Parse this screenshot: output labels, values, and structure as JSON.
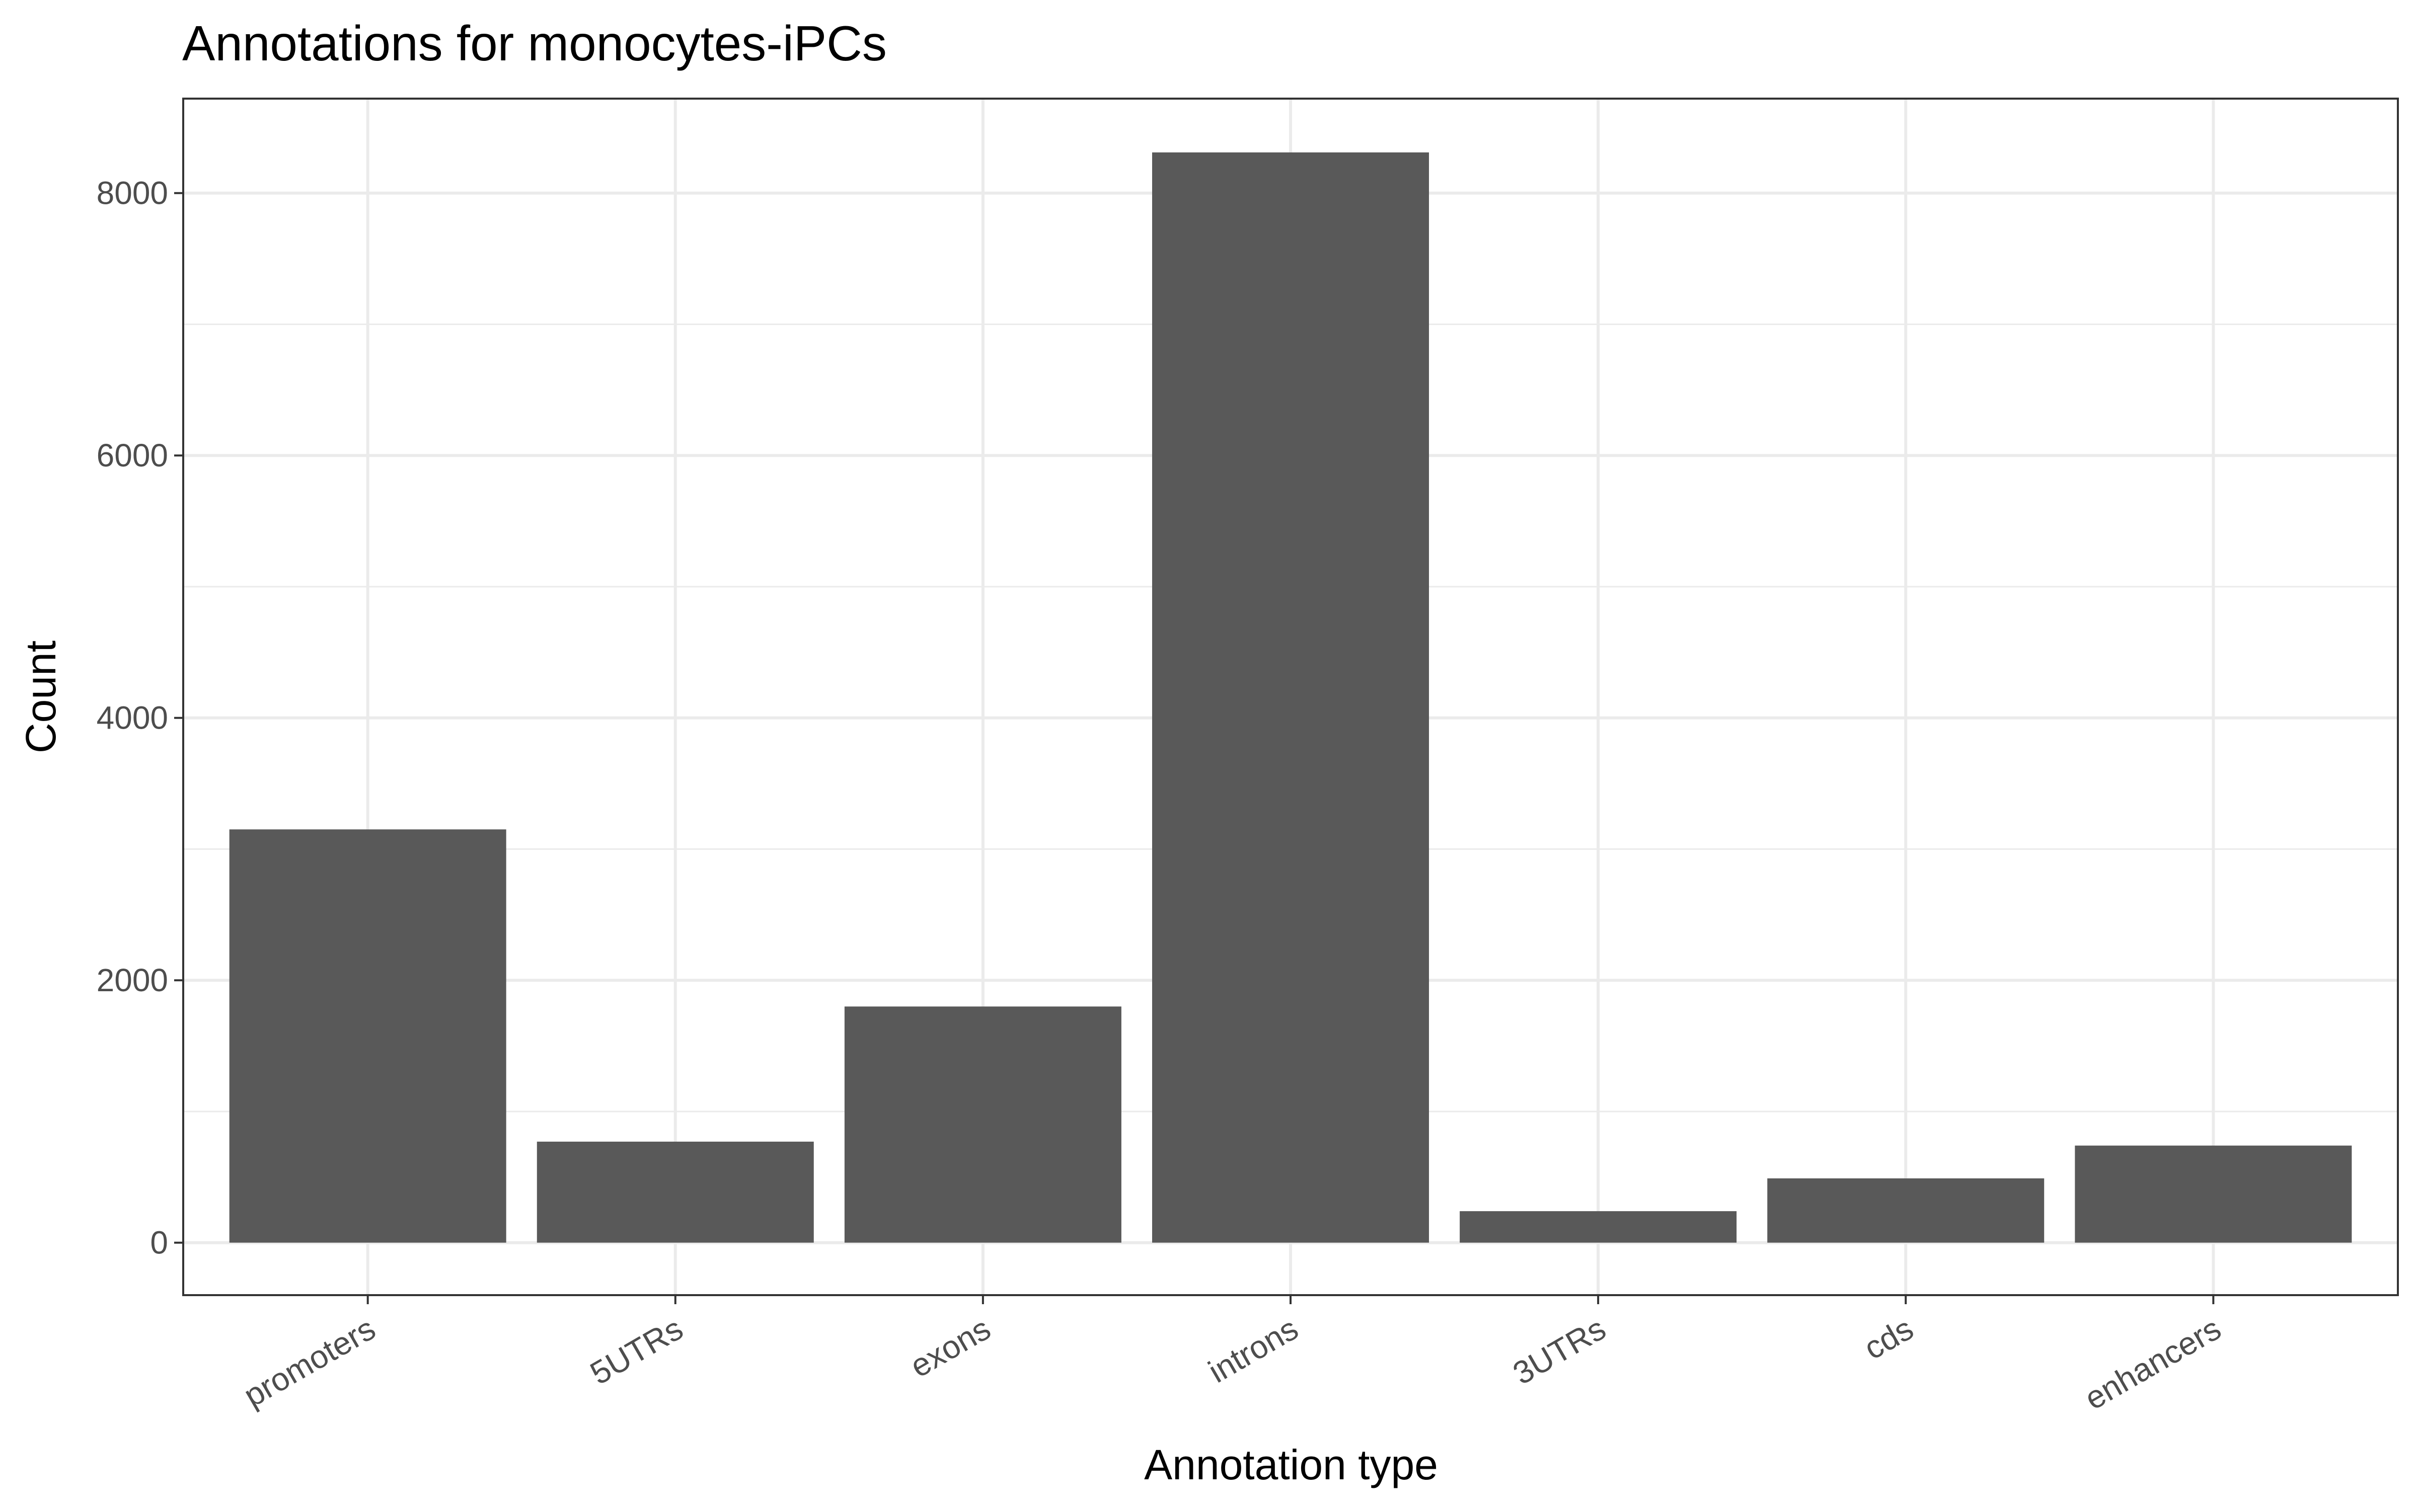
{
  "chart_data": {
    "type": "bar",
    "title": "Annotations for monocytes-iPCs",
    "xlabel": "Annotation type",
    "ylabel": "Count",
    "categories": [
      "promoters",
      "5UTRs",
      "exons",
      "introns",
      "3UTRs",
      "cds",
      "enhancers"
    ],
    "values": [
      3150,
      770,
      1800,
      8310,
      240,
      490,
      740
    ],
    "ylim": [
      -400,
      8720
    ],
    "yticks": [
      0,
      2000,
      4000,
      6000,
      8000
    ],
    "yticks_labels": [
      "0",
      "2000",
      "4000",
      "6000",
      "8000"
    ],
    "grid": true,
    "legend": "none",
    "bar_color": "#595959"
  }
}
